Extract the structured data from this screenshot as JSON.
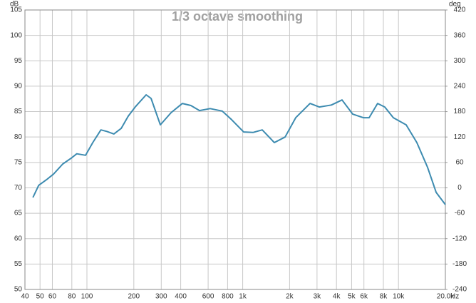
{
  "chart_data": {
    "type": "line",
    "title": "1/3 octave smoothing",
    "ylabel": "dB",
    "y2label": "deg",
    "xlabel": "Hz",
    "xscale": "log",
    "grid": true,
    "xlim": [
      40,
      20000
    ],
    "xticks": [
      40,
      50,
      60,
      80,
      100,
      200,
      300,
      400,
      600,
      800,
      {
        "value": 1000,
        "label": "1k"
      },
      {
        "value": 2000,
        "label": "2k"
      },
      {
        "value": 3000,
        "label": "3k"
      },
      {
        "value": 4000,
        "label": "4k"
      },
      {
        "value": 5000,
        "label": "5k"
      },
      {
        "value": 6000,
        "label": "6k"
      },
      {
        "value": 8000,
        "label": "8k"
      },
      {
        "value": 10000,
        "label": "10k"
      },
      {
        "value": 20000,
        "label": "20.0k"
      }
    ],
    "ylim": [
      50,
      105
    ],
    "yticks": [
      50,
      55,
      60,
      65,
      70,
      75,
      80,
      85,
      90,
      95,
      100,
      105
    ],
    "y2lim": [
      -240,
      420
    ],
    "y2ticks": [
      -240,
      -180,
      -120,
      -60,
      0,
      60,
      120,
      180,
      240,
      300,
      360,
      420
    ],
    "x": [
      45,
      49,
      55,
      61,
      70,
      79,
      86,
      98,
      109,
      123,
      134,
      149,
      166,
      184,
      204,
      240,
      258,
      296,
      347,
      410,
      465,
      528,
      618,
      739,
      849,
      1014,
      1164,
      1334,
      1596,
      1871,
      2189,
      2705,
      3100,
      3708,
      4343,
      5083,
      5956,
      6478,
      7346,
      8166,
      9271,
      11200,
      13120,
      15380,
      17460,
      20000
    ],
    "series": [
      {
        "name": "1/3 octave smoothing",
        "color": "#3d8bb0",
        "values": [
          68.1,
          70.5,
          71.6,
          72.7,
          74.7,
          75.8,
          76.7,
          76.4,
          78.9,
          81.4,
          81.1,
          80.6,
          81.7,
          84.1,
          85.9,
          88.3,
          87.6,
          82.4,
          84.8,
          86.6,
          86.2,
          85.2,
          85.6,
          85.1,
          83.4,
          81.0,
          80.9,
          81.4,
          78.9,
          80.0,
          83.8,
          86.6,
          85.9,
          86.3,
          87.3,
          84.5,
          83.8,
          83.8,
          86.6,
          85.9,
          83.8,
          82.4,
          78.9,
          74.0,
          69.1,
          66.7
        ]
      }
    ]
  }
}
